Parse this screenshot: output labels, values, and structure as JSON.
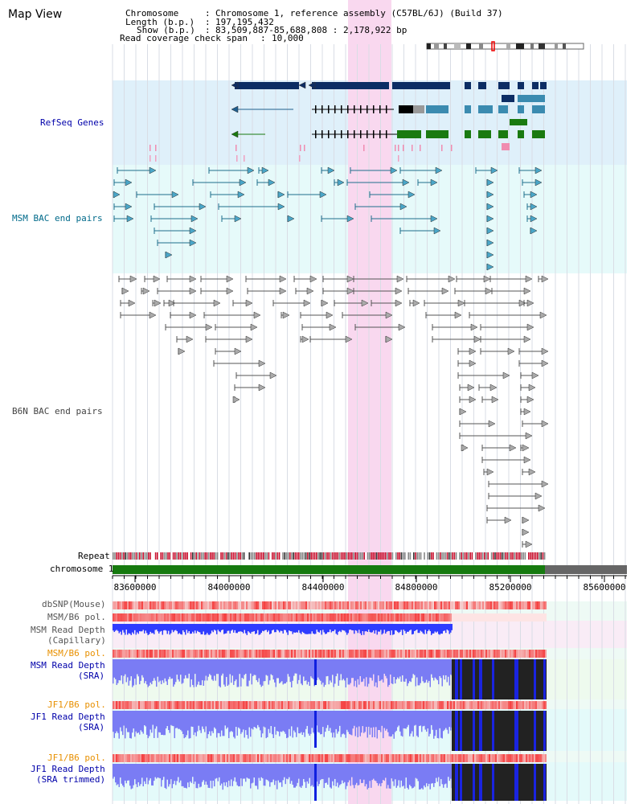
{
  "app_title": "Map View",
  "info": {
    "chromosome_label": "Chromosome",
    "chromosome_value": "Chromosome 1, reference assembly (C57BL/6J) (Build 37)",
    "length_label": "Length (b.p.)",
    "length_value": "197,195,432",
    "show_label": "Show (b.p.)",
    "show_value": "83,509,887-85,688,808 : 2,178,922 bp",
    "coverage_label": "Read coverage check span",
    "coverage_value": "10,000"
  },
  "tracks": {
    "refseq": "RefSeq Genes",
    "msm_bac": "MSM BAC end pairs",
    "b6n_bac": "B6N BAC end pairs",
    "repeat": "Repeat",
    "chromosome": "chromosome 1",
    "dbsnp": "dbSNP(Mouse)",
    "msm_b6_pol": "MSM/B6 pol.",
    "msm_depth_cap_1": "MSM Read Depth",
    "msm_depth_cap_2": "(Capillary)",
    "msm_b6_pol2": "MSM/B6 pol.",
    "msm_depth_sra_1": "MSM Read Depth",
    "msm_depth_sra_2": "(SRA)",
    "jf1_b6_pol": "JF1/B6 pol.",
    "jf1_depth_sra_1": "JF1 Read Depth",
    "jf1_depth_sra_2": "(SRA)",
    "jf1_b6_pol2": "JF1/B6 pol.",
    "jf1_depth_trim_1": "JF1 Read Depth",
    "jf1_depth_trim_2": "(SRA trimmed)"
  },
  "axis_ticks": [
    "83600000",
    "84000000",
    "84400000",
    "84800000",
    "85200000",
    "85600000"
  ],
  "colors": {
    "refseq_bg": "#dff0fa",
    "msm_bac_bg": "#e6fafa",
    "highlight": "#f9d8ef",
    "gene_navy": "#0c2d64",
    "gene_teal": "#3b8bb0",
    "gene_green": "#1a7a10",
    "bac_msm": "#1f6e8c",
    "bac_b6n": "#555555",
    "chromosome_bar": "#167a0f",
    "label_blue": "#0000aa",
    "label_teal": "#006a8a",
    "label_orange": "#e89000"
  }
}
